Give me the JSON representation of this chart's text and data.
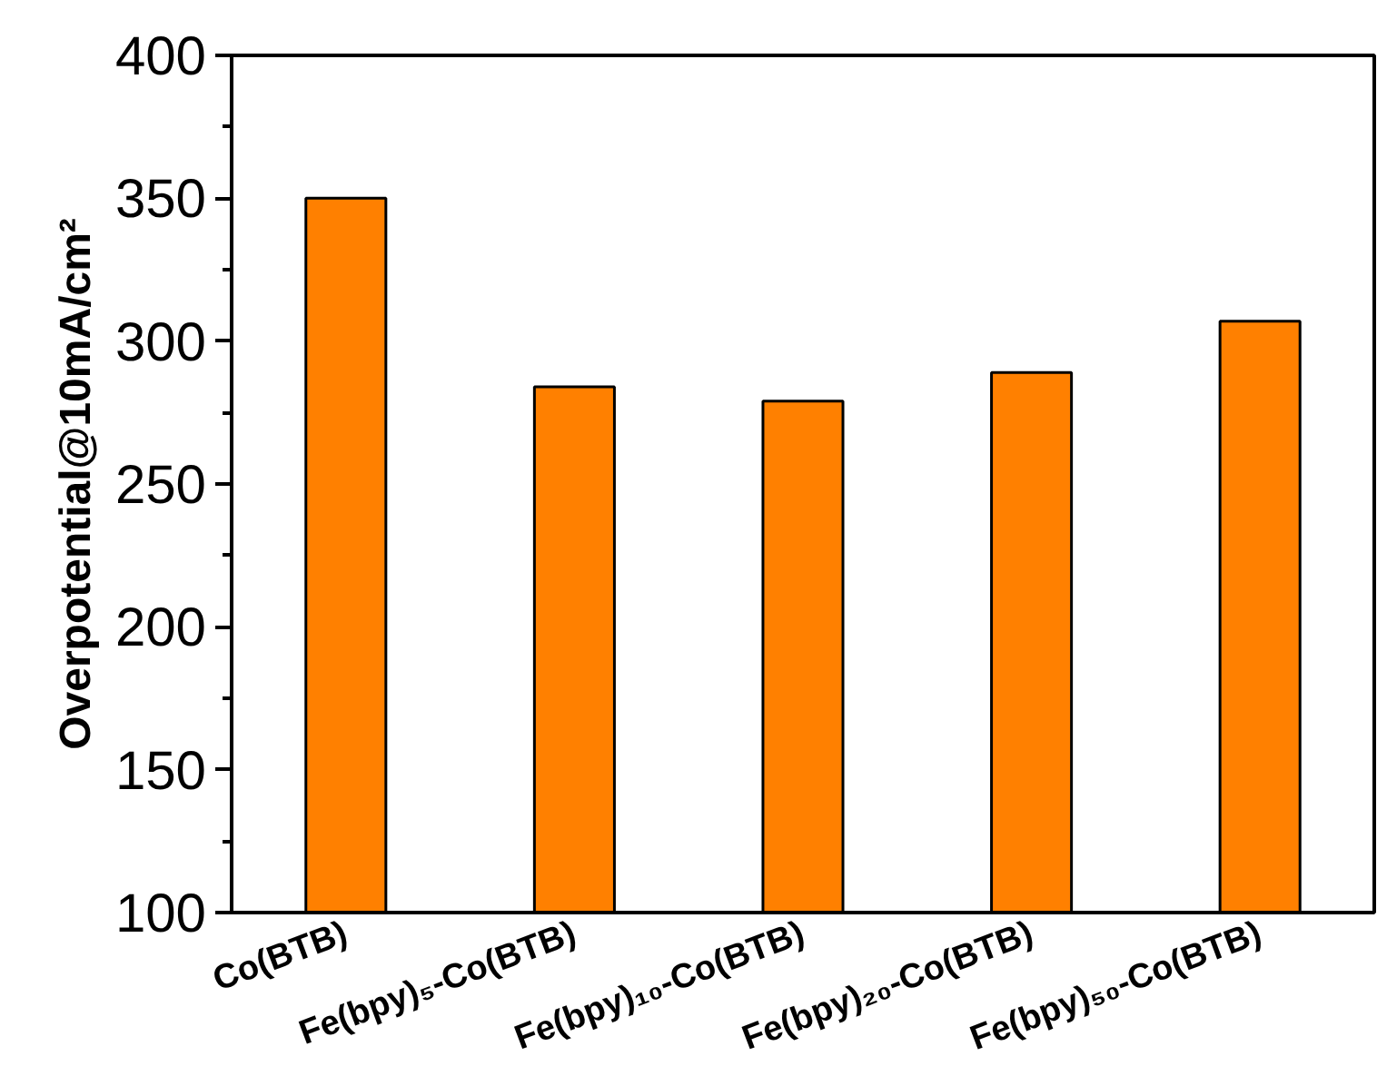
{
  "chart_data": {
    "type": "bar",
    "ylabel": "Overpotential@10mA/cm²",
    "categories": [
      "Co(BTB)",
      "Fe(bpy)₅-Co(BTB)",
      "Fe(bpy)₁₀-Co(BTB)",
      "Fe(bpy)₂₀-Co(BTB)",
      "Fe(bpy)₅₀-Co(BTB)"
    ],
    "values": [
      350,
      284,
      279,
      289,
      307
    ],
    "color": "#ff8000",
    "ylim": [
      100,
      400
    ],
    "yticks": [
      100,
      150,
      200,
      250,
      300,
      350,
      400
    ],
    "grid": false
  }
}
